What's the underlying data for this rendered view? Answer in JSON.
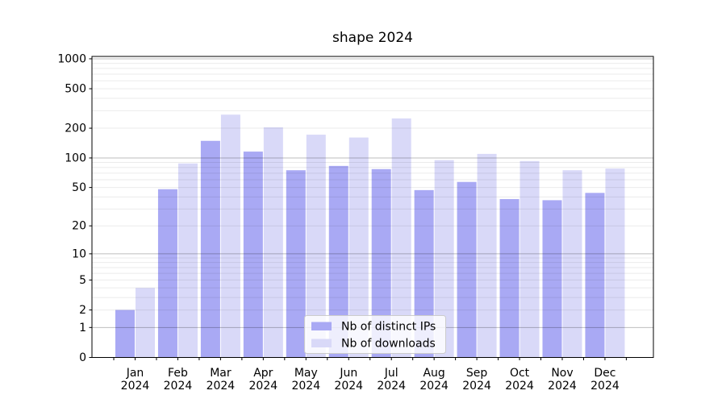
{
  "title": "shape 2024",
  "chart_data": {
    "type": "bar",
    "title": "shape 2024",
    "months": [
      "Jan",
      "Feb",
      "Mar",
      "Apr",
      "May",
      "Jun",
      "Jul",
      "Aug",
      "Sep",
      "Oct",
      "Nov",
      "Dec"
    ],
    "year": "2024",
    "categories": [
      "Jan 2024",
      "Feb 2024",
      "Mar 2024",
      "Apr 2024",
      "May 2024",
      "Jun 2024",
      "Jul 2024",
      "Aug 2024",
      "Sep 2024",
      "Oct 2024",
      "Nov 2024",
      "Dec 2024"
    ],
    "series": [
      {
        "name": "Nb of distinct IPs",
        "color": "#a9a9f4",
        "values": [
          2,
          48,
          149,
          116,
          75,
          83,
          77,
          47,
          57,
          38,
          37,
          44
        ]
      },
      {
        "name": "Nb of downloads",
        "color": "#d9d9f8",
        "values": [
          4,
          88,
          274,
          204,
          172,
          161,
          251,
          95,
          110,
          93,
          75,
          78
        ]
      }
    ],
    "y_ticks": [
      0,
      1,
      2,
      5,
      10,
      20,
      50,
      100,
      200,
      500,
      1000
    ],
    "ylim": [
      0,
      1057
    ],
    "yscale": "symlog (log10 of 1+value)",
    "grid": true,
    "grid_major_at": [
      1,
      10,
      100,
      1000
    ],
    "legend_position": "lower center",
    "xlabel": "",
    "ylabel": ""
  },
  "colors": {
    "background": "#ffffff",
    "bar_distinct_ips": "#a9a9f4",
    "bar_downloads": "#d9d9f8",
    "grid_major": "rgba(0,0,0,0.26)",
    "grid_minor": "rgba(0,0,0,0.08)",
    "axis": "#000000"
  }
}
